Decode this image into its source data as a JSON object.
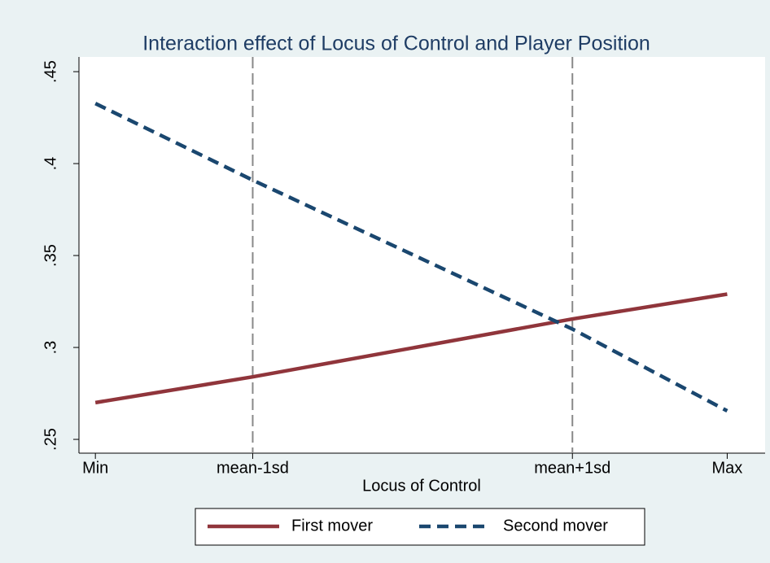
{
  "chart_data": {
    "type": "line",
    "title": "Interaction effect of Locus of Control and Player Position",
    "x_label": "Locus of Control",
    "x": [
      0,
      0.249,
      0.755,
      1
    ],
    "xlim": [
      -0.026,
      1.06
    ],
    "xticks": [
      {
        "value": 0,
        "label": "Min"
      },
      {
        "value": 0.249,
        "label": "mean-1sd"
      },
      {
        "value": 0.755,
        "label": "mean+1sd"
      },
      {
        "value": 1,
        "label": "Max"
      }
    ],
    "xlines": [
      0.249,
      0.755
    ],
    "ylim": [
      0.2425,
      0.458
    ],
    "yticks": [
      {
        "value": 0.25,
        "label": ".25"
      },
      {
        "value": 0.3,
        "label": ".3"
      },
      {
        "value": 0.35,
        "label": ".35"
      },
      {
        "value": 0.4,
        "label": ".4"
      },
      {
        "value": 0.45,
        "label": ".45"
      }
    ],
    "series": [
      {
        "name": "First mover",
        "color": "#90353b",
        "dash": false,
        "values": [
          0.27,
          0.284,
          0.3155,
          0.329
        ]
      },
      {
        "name": "Second mover",
        "color": "#1a476f",
        "dash": true,
        "values": [
          0.4327,
          0.391,
          0.31,
          0.2655
        ]
      }
    ]
  }
}
